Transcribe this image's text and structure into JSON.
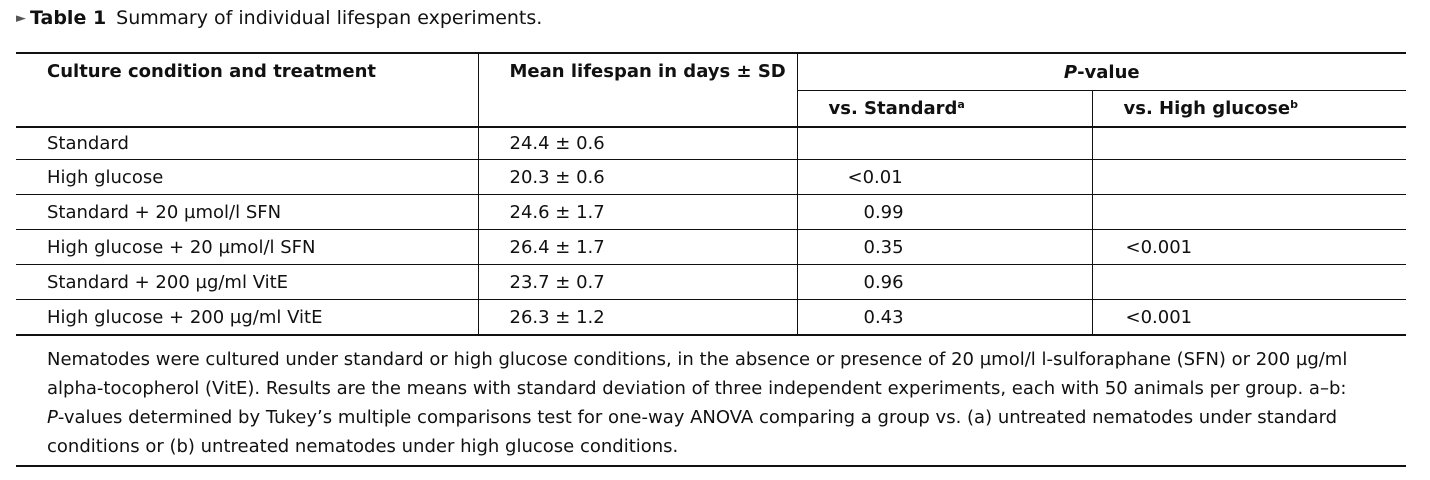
{
  "caption": {
    "arrow": "►",
    "label": "Table 1",
    "title": "Summary of individual lifespan experiments."
  },
  "table": {
    "headers": {
      "condition": "Culture condition and treatment",
      "lifespan": "Mean lifespan in days ± SD",
      "pvalue_prefix": "P",
      "pvalue_suffix": "-value",
      "vs_standard": "vs. Standard",
      "vs_standard_sup": "a",
      "vs_high_glucose": "vs. High glucose",
      "vs_high_glucose_sup": "b"
    },
    "rows": [
      {
        "condition": "Standard",
        "lifespan": "24.4 ± 0.6",
        "vs_standard": "",
        "vs_high_glucose": ""
      },
      {
        "condition": "High glucose",
        "lifespan": "20.3 ± 0.6",
        "vs_standard": "<0.01",
        "vs_high_glucose": ""
      },
      {
        "condition": "Standard + 20 µmol/l SFN",
        "lifespan": "24.6 ± 1.7",
        "vs_standard": "0.99",
        "vs_high_glucose": ""
      },
      {
        "condition": "High glucose + 20 µmol/l SFN",
        "lifespan": "26.4 ± 1.7",
        "vs_standard": "0.35",
        "vs_high_glucose": "<0.001"
      },
      {
        "condition": "Standard + 200 µg/ml VitE",
        "lifespan": "23.7 ± 0.7",
        "vs_standard": "0.96",
        "vs_high_glucose": ""
      },
      {
        "condition": "High glucose + 200 µg/ml VitE",
        "lifespan": "26.3 ± 1.2",
        "vs_standard": "0.43",
        "vs_high_glucose": "<0.001"
      }
    ]
  },
  "footnote": {
    "line1": "Nematodes were cultured under standard or high glucose conditions, in the absence or presence of 20 µmol/l l-sulforaphane (SFN) or 200 µg/ml",
    "line2": "alpha-tocopherol (VitE). Results are the means with standard deviation of three independent experiments, each with 50 animals per group. a–b:",
    "line3_italic": "P",
    "line3_rest": "-values determined by Tukey’s multiple comparisons test for one-way ANOVA comparing a group vs. (a) untreated nematodes under standard",
    "line4": "conditions or (b) untreated nematodes under high glucose conditions."
  }
}
